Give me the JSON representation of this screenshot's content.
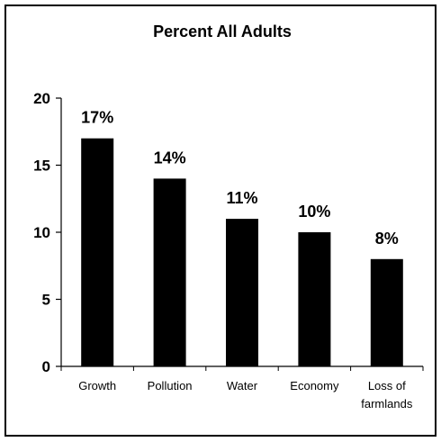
{
  "chart_data": {
    "type": "bar",
    "title": "Percent All Adults",
    "categories": [
      [
        "Growth"
      ],
      [
        "Pollution"
      ],
      [
        "Water"
      ],
      [
        "Economy"
      ],
      [
        "Loss of",
        "farmlands"
      ]
    ],
    "values": [
      17,
      14,
      11,
      10,
      8
    ],
    "data_labels": [
      "17%",
      "14%",
      "11%",
      "10%",
      "8%"
    ],
    "yticks": [
      0,
      5,
      10,
      15,
      20
    ],
    "ylim": [
      0,
      20
    ],
    "xlabel": "",
    "ylabel": "",
    "grid": false,
    "bar_color": "#000000"
  }
}
